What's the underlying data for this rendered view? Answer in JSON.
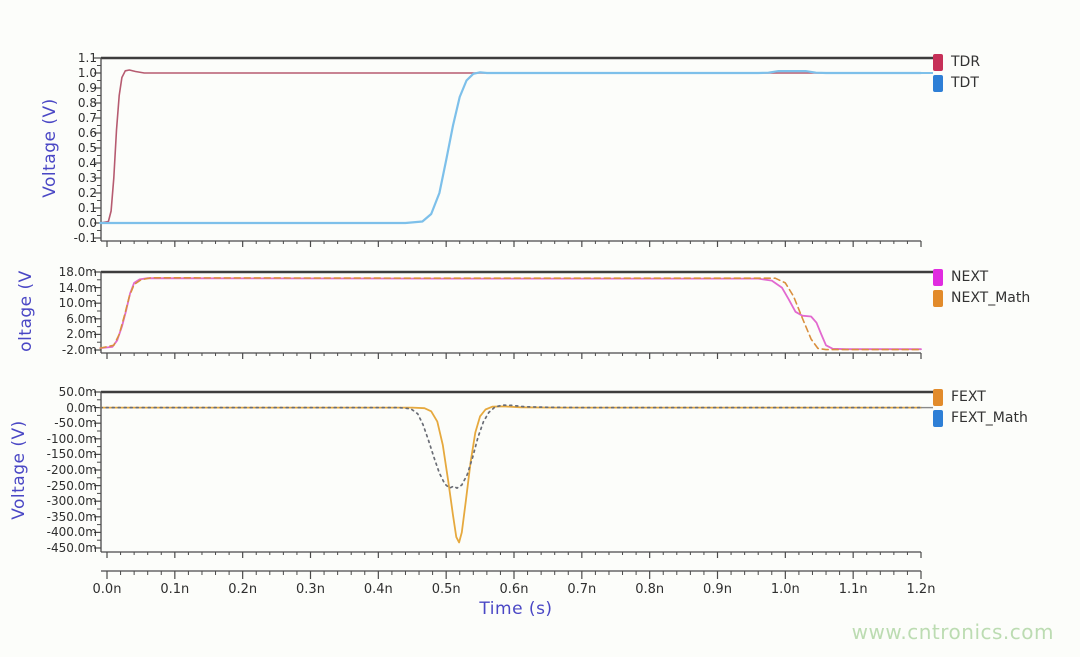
{
  "watermark": "www.cntronics.com",
  "xaxis": {
    "label": "Time (s)",
    "xlim": [
      0,
      1.2
    ],
    "tick_values": [
      0.0,
      0.1,
      0.2,
      0.3,
      0.4,
      0.5,
      0.6,
      0.7,
      0.8,
      0.9,
      1.0,
      1.1,
      1.2
    ],
    "tick_labels": [
      "0.0n",
      "0.1n",
      "0.2n",
      "0.3n",
      "0.4n",
      "0.5n",
      "0.6n",
      "0.7n",
      "0.8n",
      "0.9n",
      "1.0n",
      "1.1n",
      "1.2n"
    ]
  },
  "chart_data": [
    {
      "type": "line",
      "ylabel": "Voltage (V)",
      "ylim": [
        -0.1,
        1.1
      ],
      "ytick_values": [
        1.1,
        1.0,
        0.9,
        0.8,
        0.7,
        0.6,
        0.5,
        0.4,
        0.3,
        0.2,
        0.1,
        0.0,
        -0.1
      ],
      "ytick_labels": [
        "1.1",
        "1.0",
        "0.9",
        "0.8",
        "0.7",
        "0.6",
        "0.5",
        "0.4",
        "0.3",
        "0.2",
        "0.1",
        "0.0",
        "-0.1"
      ],
      "series": [
        {
          "name": "TDR",
          "color": "#b65b70",
          "swatch": "#c63058",
          "dash": null,
          "width": 1.6,
          "points": [
            [
              -0.01,
              0
            ],
            [
              0.002,
              0.01
            ],
            [
              0.006,
              0.08
            ],
            [
              0.01,
              0.3
            ],
            [
              0.014,
              0.62
            ],
            [
              0.018,
              0.85
            ],
            [
              0.022,
              0.97
            ],
            [
              0.027,
              1.015
            ],
            [
              0.033,
              1.02
            ],
            [
              0.042,
              1.01
            ],
            [
              0.055,
              1.0
            ],
            [
              0.3,
              1.0
            ],
            [
              1.2,
              1.0
            ]
          ]
        },
        {
          "name": "TDT",
          "color": "#7dc0ea",
          "swatch": "#2e7fd6",
          "dash": null,
          "width": 2.2,
          "points": [
            [
              -0.01,
              0
            ],
            [
              0.44,
              0
            ],
            [
              0.465,
              0.01
            ],
            [
              0.478,
              0.06
            ],
            [
              0.49,
              0.2
            ],
            [
              0.5,
              0.42
            ],
            [
              0.51,
              0.65
            ],
            [
              0.52,
              0.84
            ],
            [
              0.53,
              0.95
            ],
            [
              0.54,
              0.995
            ],
            [
              0.55,
              1.005
            ],
            [
              0.56,
              1.0
            ],
            [
              0.96,
              1.0
            ],
            [
              0.975,
              1.002
            ],
            [
              0.99,
              1.013
            ],
            [
              1.03,
              1.013
            ],
            [
              1.045,
              1.002
            ],
            [
              1.06,
              1.0
            ],
            [
              1.2,
              1.0
            ]
          ]
        }
      ]
    },
    {
      "type": "line",
      "ylabel": "oltage (V",
      "ylim": [
        -0.002,
        0.018
      ],
      "ytick_values": [
        0.018,
        0.014,
        0.01,
        0.006,
        0.002,
        -0.002
      ],
      "ytick_labels": [
        "18.0m",
        "14.0m",
        "10.0m",
        "6.0m",
        "2.0m",
        "-2.0m"
      ],
      "series": [
        {
          "name": "NEXT",
          "color": "#e269cf",
          "swatch": "#e02ce0",
          "dash": null,
          "width": 1.8,
          "points": [
            [
              -0.01,
              -0.0015
            ],
            [
              0.008,
              -0.0012
            ],
            [
              0.015,
              0.0005
            ],
            [
              0.022,
              0.004
            ],
            [
              0.028,
              0.008
            ],
            [
              0.034,
              0.0125
            ],
            [
              0.04,
              0.0152
            ],
            [
              0.048,
              0.0161
            ],
            [
              0.06,
              0.0164
            ],
            [
              0.5,
              0.0163
            ],
            [
              0.96,
              0.0163
            ],
            [
              0.98,
              0.0158
            ],
            [
              0.995,
              0.014
            ],
            [
              1.005,
              0.011
            ],
            [
              1.015,
              0.0078
            ],
            [
              1.025,
              0.0068
            ],
            [
              1.038,
              0.0066
            ],
            [
              1.046,
              0.005
            ],
            [
              1.053,
              0.002
            ],
            [
              1.06,
              -0.0008
            ],
            [
              1.07,
              -0.0017
            ],
            [
              1.09,
              -0.0018
            ],
            [
              1.2,
              -0.0018
            ]
          ]
        },
        {
          "name": "NEXT_Math",
          "color": "#d98f3e",
          "swatch": "#e28b2b",
          "dash": "6,4",
          "width": 1.6,
          "points": [
            [
              -0.01,
              -0.0015
            ],
            [
              0.01,
              -0.0008
            ],
            [
              0.018,
              0.002
            ],
            [
              0.026,
              0.007
            ],
            [
              0.033,
              0.0118
            ],
            [
              0.04,
              0.0148
            ],
            [
              0.05,
              0.016
            ],
            [
              0.065,
              0.0165
            ],
            [
              0.5,
              0.0164
            ],
            [
              0.985,
              0.0164
            ],
            [
              1.0,
              0.0152
            ],
            [
              1.012,
              0.0118
            ],
            [
              1.025,
              0.0062
            ],
            [
              1.038,
              0.0008
            ],
            [
              1.048,
              -0.0016
            ],
            [
              1.06,
              -0.0019
            ],
            [
              1.2,
              -0.0019
            ]
          ]
        }
      ]
    },
    {
      "type": "line",
      "ylabel": "Voltage (V)",
      "ylim": [
        -0.45,
        0.05
      ],
      "ytick_values": [
        0.05,
        0.0,
        -0.05,
        -0.1,
        -0.15,
        -0.2,
        -0.25,
        -0.3,
        -0.35,
        -0.4,
        -0.45
      ],
      "ytick_labels": [
        "50.0m",
        "0.0m",
        "-50.0m",
        "-100.0m",
        "-150.0m",
        "-200.0m",
        "-250.0m",
        "-300.0m",
        "-350.0m",
        "-400.0m",
        "-450.0m"
      ],
      "series": [
        {
          "name": "FEXT",
          "color": "#e6a93e",
          "swatch": "#e28b2b",
          "dash": null,
          "width": 1.8,
          "points": [
            [
              -0.01,
              0
            ],
            [
              0.45,
              0
            ],
            [
              0.468,
              -0.002
            ],
            [
              0.478,
              -0.012
            ],
            [
              0.487,
              -0.045
            ],
            [
              0.495,
              -0.12
            ],
            [
              0.503,
              -0.235
            ],
            [
              0.51,
              -0.345
            ],
            [
              0.515,
              -0.415
            ],
            [
              0.519,
              -0.432
            ],
            [
              0.523,
              -0.4
            ],
            [
              0.529,
              -0.3
            ],
            [
              0.536,
              -0.175
            ],
            [
              0.543,
              -0.08
            ],
            [
              0.55,
              -0.028
            ],
            [
              0.558,
              -0.006
            ],
            [
              0.568,
              0.003
            ],
            [
              0.585,
              0.004
            ],
            [
              0.61,
              0.001
            ],
            [
              0.66,
              0
            ],
            [
              1.2,
              0
            ]
          ]
        },
        {
          "name": "FEXT_Math",
          "color": "#6a6d75",
          "swatch": "#2e7fd6",
          "dash": "2,4",
          "width": 1.7,
          "points": [
            [
              -0.01,
              0
            ],
            [
              0.43,
              0
            ],
            [
              0.448,
              -0.004
            ],
            [
              0.458,
              -0.02
            ],
            [
              0.466,
              -0.055
            ],
            [
              0.474,
              -0.105
            ],
            [
              0.482,
              -0.16
            ],
            [
              0.49,
              -0.21
            ],
            [
              0.498,
              -0.245
            ],
            [
              0.505,
              -0.258
            ],
            [
              0.511,
              -0.252
            ],
            [
              0.516,
              -0.258
            ],
            [
              0.523,
              -0.248
            ],
            [
              0.531,
              -0.215
            ],
            [
              0.539,
              -0.16
            ],
            [
              0.547,
              -0.095
            ],
            [
              0.555,
              -0.045
            ],
            [
              0.563,
              -0.015
            ],
            [
              0.572,
              0.002
            ],
            [
              0.583,
              0.008
            ],
            [
              0.597,
              0.007
            ],
            [
              0.615,
              0.003
            ],
            [
              0.65,
              0.001
            ],
            [
              0.7,
              0
            ],
            [
              1.2,
              0
            ]
          ]
        }
      ]
    }
  ],
  "style": {
    "frame_color": "#3d3d3d",
    "axis_color": "#4a4a4a",
    "axis_title_color": "#4a47c5",
    "tick_label_color": "#2f2f2f",
    "background": "#fcfdfa",
    "watermark_color": "#bcdcb2"
  }
}
